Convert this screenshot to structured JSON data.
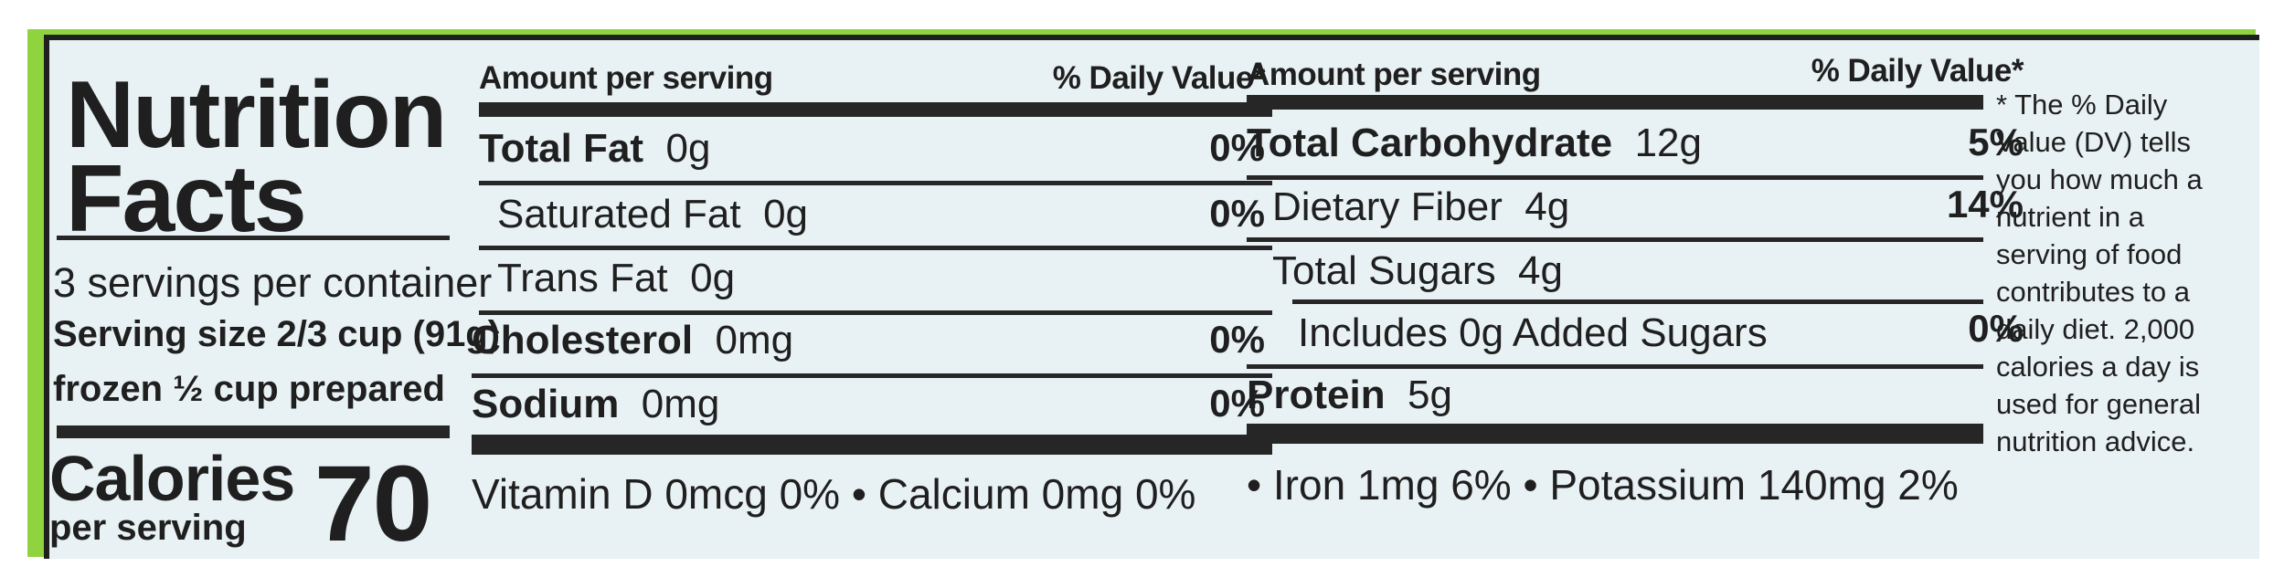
{
  "title": {
    "line1": "Nutrition",
    "line2": "Facts"
  },
  "servings_per_container": "3 servings per container",
  "serving_size": "Serving size 2/3 cup (91g)",
  "serving_note": "frozen ½ cup prepared",
  "calories": {
    "label": "Calories",
    "sublabel": "per serving",
    "value": "70"
  },
  "headers": {
    "amount": "Amount per serving",
    "dv": "% Daily Value*"
  },
  "left_nutrients": [
    {
      "name": "Total Fat",
      "amount": "0g",
      "dv": "0%"
    },
    {
      "name": "Saturated Fat",
      "amount": "0g",
      "dv": "0%"
    },
    {
      "name": "Trans Fat",
      "amount": "0g",
      "dv": ""
    },
    {
      "name": "Cholesterol",
      "amount": "0mg",
      "dv": "0%"
    },
    {
      "name": "Sodium",
      "amount": "0mg",
      "dv": "0%"
    }
  ],
  "right_nutrients": [
    {
      "name": "Total Carbohydrate",
      "amount": "12g",
      "dv": "5%"
    },
    {
      "name": "Dietary Fiber",
      "amount": "4g",
      "dv": "14%"
    },
    {
      "name": "Total Sugars",
      "amount": "4g",
      "dv": ""
    },
    {
      "name": "Includes 0g Added Sugars",
      "amount": "",
      "dv": "0%"
    },
    {
      "name": "Protein",
      "amount": "5g",
      "dv": ""
    }
  ],
  "vitamins_left": "Vitamin D  0mcg  0% • Calcium  0mg  0%",
  "vitamins_right": "• Iron  1mg  6% • Potassium  140mg  2%",
  "footnote": "* The % Daily Value (DV) tells you how much a nutrient in a serving of food contributes to a daily diet. 2,000 calories a day is used for general nutrition advice.",
  "colors": {
    "band": "#8fd43f",
    "panel": "#e8f1f4",
    "ink": "#1f1f1f"
  }
}
